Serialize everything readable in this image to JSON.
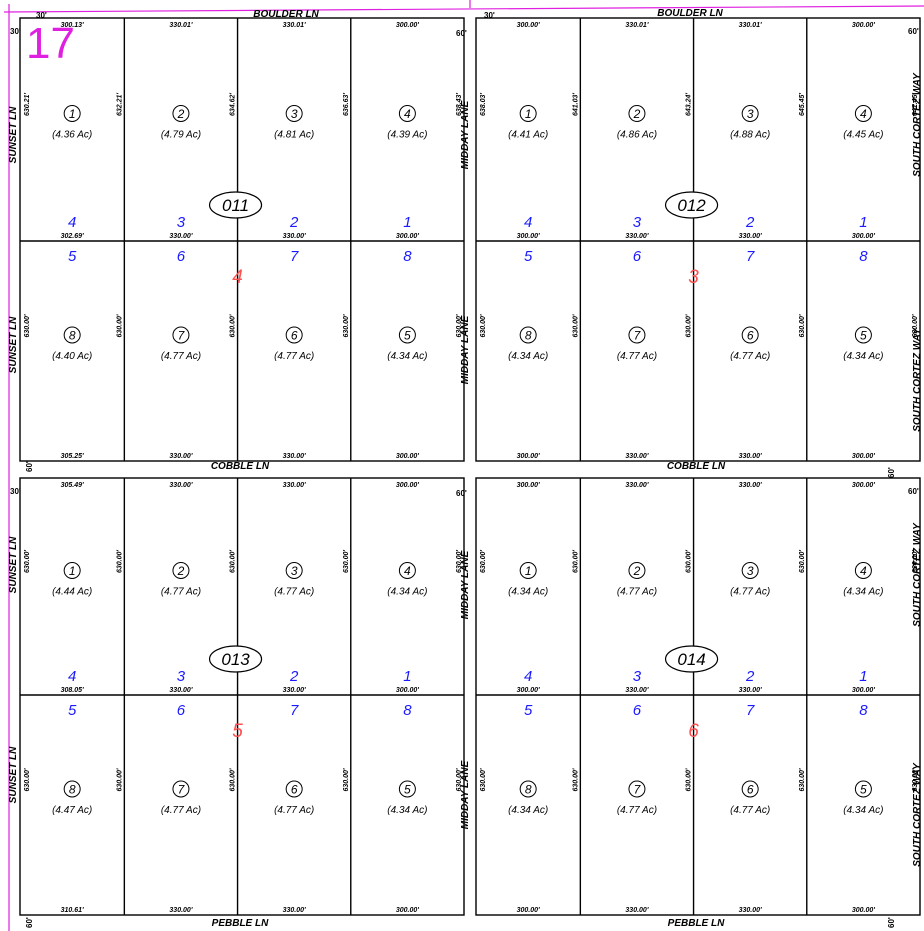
{
  "page_number": "17",
  "streets": {
    "boulder_w": "BOULDER LN",
    "boulder_e": "BOULDER LN",
    "cobble_w": "COBBLE LN",
    "cobble_e": "COBBLE LN",
    "pebble_w": "PEBBLE LN",
    "pebble_e": "PEBBLE LN",
    "sunset": [
      "SUNSET LN",
      "SUNSET LN",
      "SUNSET LN",
      "SUNSET LN"
    ],
    "midday": [
      "MIDDAY LANE",
      "MIDDAY LANE",
      "MIDDAY LANE",
      "MIDDAY LANE"
    ],
    "south_cortez": [
      "SOUTH CORTEZ WAY",
      "SOUTH CORTEZ WAY",
      "SOUTH CORTEZ WAY",
      "SOUTH CORTEZ WAY"
    ]
  },
  "edge_marks": [
    "30'",
    "30'",
    "30'",
    "30'",
    "60'",
    "60'",
    "60'",
    "60'",
    "60'",
    "60'",
    "60'",
    "60'",
    "60'",
    "60'",
    "60'",
    "60'"
  ],
  "blocks": [
    {
      "id": "011",
      "sub_quarter": "4",
      "top_row": {
        "top_dims": [
          "300.13'",
          "330.01'",
          "330.01'",
          "300.00'"
        ],
        "bottom_dims": [
          "302.69'",
          "330.00'",
          "330.00'",
          "300.00'"
        ],
        "side_dims": [
          "630.21'",
          "632.21'",
          "634.62'",
          "636.63'",
          "638.43'"
        ],
        "quarters": [
          "4",
          "3",
          "2",
          "1"
        ],
        "parcels": [
          {
            "num": "1",
            "acres": "(4.36 Ac)"
          },
          {
            "num": "2",
            "acres": "(4.79 Ac)"
          },
          {
            "num": "3",
            "acres": "(4.81 Ac)"
          },
          {
            "num": "4",
            "acres": "(4.39 Ac)"
          }
        ]
      },
      "bottom_row": {
        "bottom_dims": [
          "305.25'",
          "330.00'",
          "330.00'",
          "300.00'"
        ],
        "side_dims": [
          "630.00'",
          "630.00'",
          "630.00'",
          "630.00'",
          "630.00'"
        ],
        "quarters": [
          "5",
          "6",
          "7",
          "8"
        ],
        "parcels": [
          {
            "num": "8",
            "acres": "(4.40 Ac)"
          },
          {
            "num": "7",
            "acres": "(4.77 Ac)"
          },
          {
            "num": "6",
            "acres": "(4.77 Ac)"
          },
          {
            "num": "5",
            "acres": "(4.34 Ac)"
          }
        ]
      }
    },
    {
      "id": "012",
      "sub_quarter": "3",
      "top_row": {
        "top_dims": [
          "300.00'",
          "330.01'",
          "330.01'",
          "300.00'"
        ],
        "bottom_dims": [
          "300.00'",
          "330.00'",
          "330.00'",
          "300.00'"
        ],
        "side_dims": [
          "638.03'",
          "641.03'",
          "643.24'",
          "645.45'",
          "647.45'"
        ],
        "quarters": [
          "4",
          "3",
          "2",
          "1"
        ],
        "parcels": [
          {
            "num": "1",
            "acres": "(4.41 Ac)"
          },
          {
            "num": "2",
            "acres": "(4.86 Ac)"
          },
          {
            "num": "3",
            "acres": "(4.88 Ac)"
          },
          {
            "num": "4",
            "acres": "(4.45 Ac)"
          }
        ]
      },
      "bottom_row": {
        "bottom_dims": [
          "300.00'",
          "330.00'",
          "330.00'",
          "300.00'"
        ],
        "side_dims": [
          "630.00'",
          "630.00'",
          "630.00'",
          "630.00'",
          "630.00'"
        ],
        "quarters": [
          "5",
          "6",
          "7",
          "8"
        ],
        "parcels": [
          {
            "num": "8",
            "acres": "(4.34 Ac)"
          },
          {
            "num": "7",
            "acres": "(4.77 Ac)"
          },
          {
            "num": "6",
            "acres": "(4.77 Ac)"
          },
          {
            "num": "5",
            "acres": "(4.34 Ac)"
          }
        ]
      }
    },
    {
      "id": "013",
      "sub_quarter": "5",
      "top_row": {
        "top_dims": [
          "305.49'",
          "330.00'",
          "330.00'",
          "300.00'"
        ],
        "bottom_dims": [
          "308.05'",
          "330.00'",
          "330.00'",
          "300.00'"
        ],
        "side_dims": [
          "630.00'",
          "630.00'",
          "630.00'",
          "630.00'",
          "630.00'"
        ],
        "quarters": [
          "4",
          "3",
          "2",
          "1"
        ],
        "parcels": [
          {
            "num": "1",
            "acres": "(4.44 Ac)"
          },
          {
            "num": "2",
            "acres": "(4.77 Ac)"
          },
          {
            "num": "3",
            "acres": "(4.77 Ac)"
          },
          {
            "num": "4",
            "acres": "(4.34 Ac)"
          }
        ]
      },
      "bottom_row": {
        "bottom_dims": [
          "310.61'",
          "330.00'",
          "330.00'",
          "300.00'"
        ],
        "side_dims": [
          "630.00'",
          "630.00'",
          "630.00'",
          "630.00'",
          "630.00'"
        ],
        "quarters": [
          "5",
          "6",
          "7",
          "8"
        ],
        "parcels": [
          {
            "num": "8",
            "acres": "(4.47 Ac)"
          },
          {
            "num": "7",
            "acres": "(4.77 Ac)"
          },
          {
            "num": "6",
            "acres": "(4.77 Ac)"
          },
          {
            "num": "5",
            "acres": "(4.34 Ac)"
          }
        ]
      }
    },
    {
      "id": "014",
      "sub_quarter": "6",
      "top_row": {
        "top_dims": [
          "300.00'",
          "330.00'",
          "330.00'",
          "300.00'"
        ],
        "bottom_dims": [
          "300.00'",
          "330.00'",
          "330.00'",
          "300.00'"
        ],
        "side_dims": [
          "630.00'",
          "630.00'",
          "630.00'",
          "630.00'",
          "630.00'"
        ],
        "quarters": [
          "4",
          "3",
          "2",
          "1"
        ],
        "parcels": [
          {
            "num": "1",
            "acres": "(4.34 Ac)"
          },
          {
            "num": "2",
            "acres": "(4.77 Ac)"
          },
          {
            "num": "3",
            "acres": "(4.77 Ac)"
          },
          {
            "num": "4",
            "acres": "(4.34 Ac)"
          }
        ]
      },
      "bottom_row": {
        "bottom_dims": [
          "300.00'",
          "330.00'",
          "330.00'",
          "300.00'"
        ],
        "side_dims": [
          "630.00'",
          "630.00'",
          "630.00'",
          "630.00'",
          "630.00'"
        ],
        "quarters": [
          "5",
          "6",
          "7",
          "8"
        ],
        "parcels": [
          {
            "num": "8",
            "acres": "(4.34 Ac)"
          },
          {
            "num": "7",
            "acres": "(4.77 Ac)"
          },
          {
            "num": "6",
            "acres": "(4.77 Ac)"
          },
          {
            "num": "5",
            "acres": "(4.34 Ac)"
          }
        ]
      }
    }
  ],
  "colors": {
    "page_border": "#e020e0",
    "quarter_blue": "#1a1aff",
    "sub_red": "#ff5050",
    "line": "#000000"
  }
}
